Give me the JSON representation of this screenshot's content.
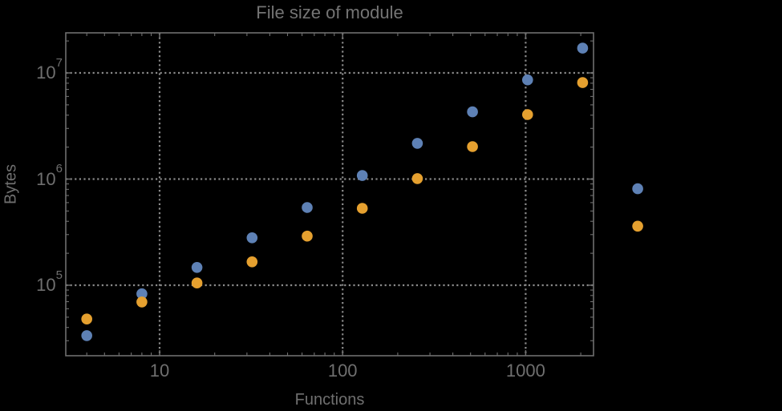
{
  "colors": {
    "background": "#000000",
    "frame": "#6f6f6f",
    "grid": "#8a8a8a",
    "text": "#707070",
    "series1": "#5E81B5",
    "series2": "#E5A02F"
  },
  "chart_data": {
    "type": "scatter",
    "title": "File size of module",
    "xlabel": "Functions",
    "ylabel": "Bytes",
    "x_scale": "log",
    "y_scale": "log",
    "grid": "dotted at decade lines",
    "legend": "none",
    "x": [
      4,
      8,
      16,
      32,
      64,
      128,
      256,
      512,
      1024,
      2048,
      4096
    ],
    "series": [
      {
        "name": "blue-series",
        "color": "#5E81B5",
        "values": [
          33500,
          83000,
          147000,
          280000,
          540000,
          1080000,
          2170000,
          4300000,
          8600000,
          17100000,
          810000
        ]
      },
      {
        "name": "orange-series",
        "color": "#E5A02F",
        "values": [
          48000,
          69500,
          105000,
          166000,
          290000,
          530000,
          1010000,
          2020000,
          4050000,
          8100000,
          360000
        ]
      }
    ],
    "x_ticks": [
      10,
      100,
      1000
    ],
    "x_tick_labels": [
      "10",
      "100",
      "1000"
    ],
    "y_ticks": [
      100000,
      1000000,
      10000000
    ],
    "y_tick_labels": [
      "10^5",
      "10^6",
      "10^7"
    ],
    "xlim": [
      3.1,
      2360
    ],
    "ylim": [
      21700,
      23800000
    ],
    "note": "last pair of points (x=4096) is rendered outside the right frame edge"
  }
}
